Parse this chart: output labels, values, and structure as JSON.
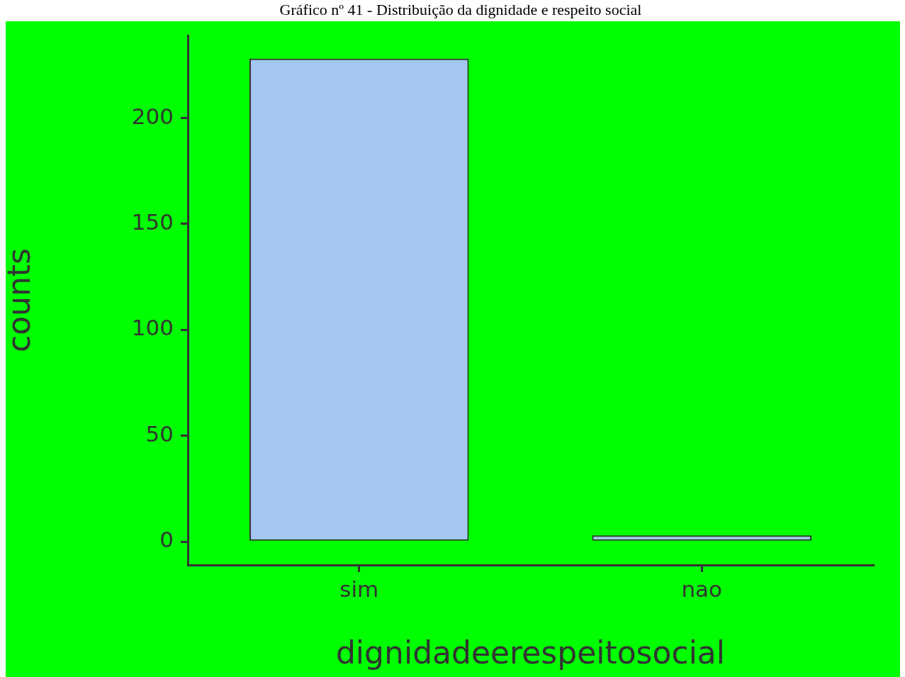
{
  "chart_data": {
    "type": "bar",
    "title": "Gráfico nº 41 - Distribuição da dignidade e respeito social",
    "xlabel": "dignidadeerespeitosocial",
    "ylabel": "counts",
    "categories": [
      "sim",
      "nao"
    ],
    "values": [
      228,
      3
    ],
    "color": "#a6c6f2",
    "ylim": [
      -11,
      239
    ],
    "yticks": [
      0,
      50,
      100,
      150,
      200
    ],
    "grid": false
  }
}
